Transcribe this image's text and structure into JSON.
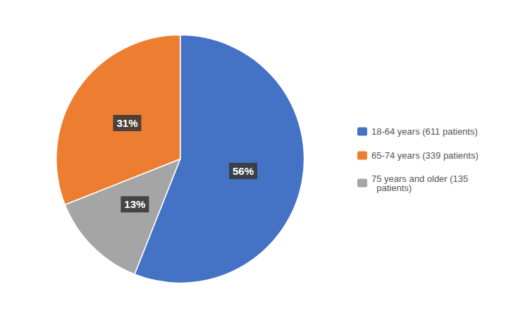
{
  "chart_data": {
    "type": "pie",
    "categories": [
      "18-64 years (611 patients)",
      "75 years and older (135\n  patients)",
      "65-74 years (339 patients)"
    ],
    "values": [
      56,
      13,
      31
    ],
    "value_labels": [
      "56%",
      "13%",
      "31%"
    ],
    "colors": [
      "#4472C4",
      "#A5A5A5",
      "#ED7D31"
    ],
    "data_labels": true,
    "legend": "right",
    "legend_labels": [
      "18-64 years (611 patients)",
      "65-74 years (339 patients)",
      "75 years and older (135\n  patients)"
    ]
  }
}
